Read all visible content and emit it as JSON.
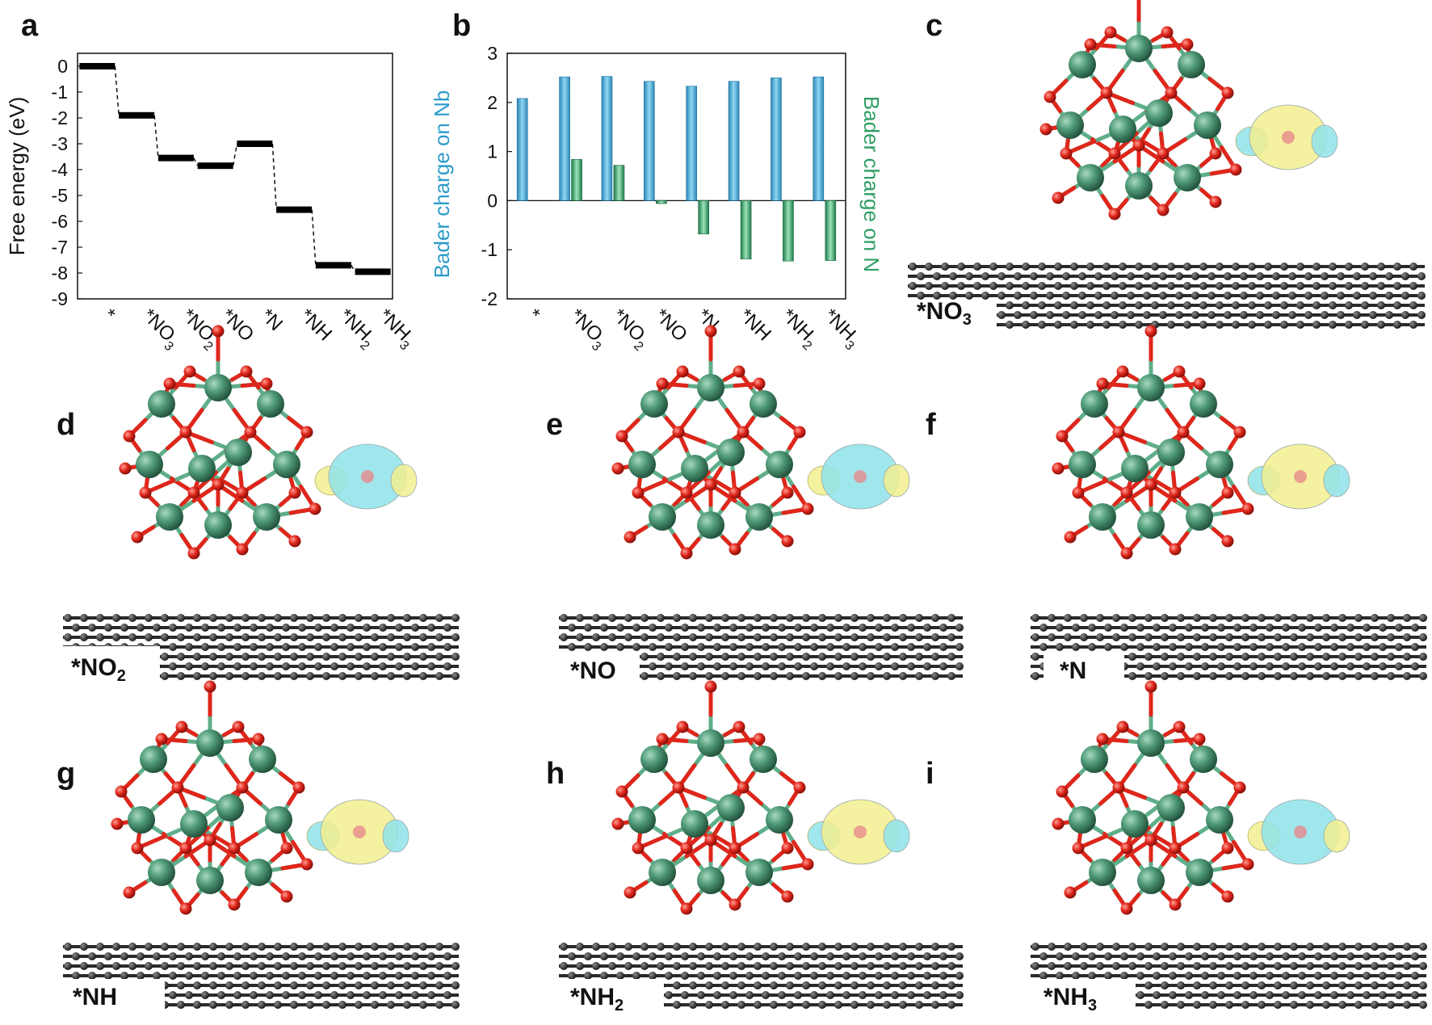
{
  "chart_data": [
    {
      "panel": "a",
      "type": "line",
      "ylabel": "Free energy (eV)",
      "ylim": [
        -9,
        0.5
      ],
      "yticks": [
        0,
        -1,
        -2,
        -3,
        -4,
        -5,
        -6,
        -7,
        -8,
        -9
      ],
      "categories": [
        {
          "base": "*",
          "sub": ""
        },
        {
          "base": "*NO",
          "sub": "3"
        },
        {
          "base": "*NO",
          "sub": "2"
        },
        {
          "base": "*NO",
          "sub": ""
        },
        {
          "base": "*N",
          "sub": ""
        },
        {
          "base": "*NH",
          "sub": ""
        },
        {
          "base": "*NH",
          "sub": "2"
        },
        {
          "base": "*NH",
          "sub": "3"
        }
      ],
      "values": [
        0,
        -1.9,
        -3.55,
        -3.85,
        -3.0,
        -5.55,
        -7.7,
        -7.95
      ],
      "color": "#000000"
    },
    {
      "panel": "b",
      "type": "bar",
      "ylabel": "Bader charge on Nb",
      "ylabel_right": "Bader charge on N",
      "ylim": [
        -2,
        3
      ],
      "yticks": [
        3,
        2,
        1,
        0,
        -1,
        -2
      ],
      "categories": [
        {
          "base": "*",
          "sub": ""
        },
        {
          "base": "*NO",
          "sub": "3"
        },
        {
          "base": "*NO",
          "sub": "2"
        },
        {
          "base": "*NO",
          "sub": ""
        },
        {
          "base": "*N",
          "sub": ""
        },
        {
          "base": "*NH",
          "sub": ""
        },
        {
          "base": "*NH",
          "sub": "2"
        },
        {
          "base": "*NH",
          "sub": "3"
        }
      ],
      "series": [
        {
          "key": "Nb",
          "values": [
            2.08,
            2.52,
            2.53,
            2.43,
            2.33,
            2.43,
            2.5,
            2.52
          ],
          "color": "#3a9fd0"
        },
        {
          "key": "N",
          "values": [
            null,
            0.84,
            0.72,
            -0.06,
            -0.68,
            -1.19,
            -1.23,
            -1.22
          ],
          "color": "#2f9e64"
        }
      ],
      "colors": {
        "nb_axis": "#2b9bc9",
        "n_axis": "#2f9e64"
      }
    }
  ],
  "panels": {
    "a": "a",
    "b": "b",
    "c": "c",
    "d": "d",
    "e": "e",
    "f": "f",
    "g": "g",
    "h": "h",
    "i": "i"
  },
  "structures": [
    {
      "panel": "c",
      "base": "*NO",
      "sub": "3",
      "cloud": "yellow"
    },
    {
      "panel": "d",
      "base": "*NO",
      "sub": "2",
      "cloud": "cyan"
    },
    {
      "panel": "e",
      "base": "*NO",
      "sub": "",
      "cloud": "cyan"
    },
    {
      "panel": "f",
      "base": "*N",
      "sub": "",
      "cloud": "yellow"
    },
    {
      "panel": "g",
      "base": "*NH",
      "sub": "",
      "cloud": "yellow"
    },
    {
      "panel": "h",
      "base": "*NH",
      "sub": "2",
      "cloud": "yellow"
    },
    {
      "panel": "i",
      "base": "*NH",
      "sub": "3",
      "cloud": "cyan"
    }
  ],
  "colors": {
    "nb_atom": "#4f9a78",
    "o_atom": "#e0261b",
    "bond": "#5fae8a",
    "graphene": "#2a2a2a",
    "iso_yellow": "#f2ee8f",
    "iso_cyan": "#8fe3ea"
  }
}
